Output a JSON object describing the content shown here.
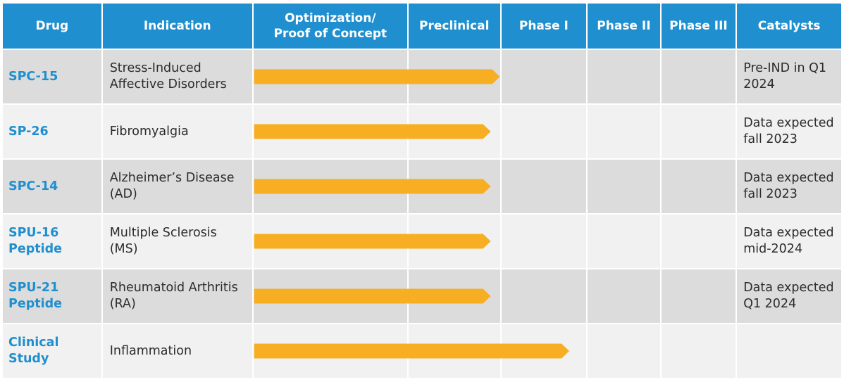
{
  "chart_data": {
    "type": "table",
    "columns": [
      "Drug",
      "Indication",
      "Optimization/\nProof of Concept",
      "Preclinical",
      "Phase I",
      "Phase II",
      "Phase III",
      "Catalysts"
    ],
    "stages": [
      "Optimization/ Proof of Concept",
      "Preclinical",
      "Phase I",
      "Phase II",
      "Phase III"
    ],
    "bar_color": "#f8ae22",
    "header_color": "#1f8fcf",
    "drug_text_color": "#1f8fcf",
    "rows": [
      {
        "drug": "SPC-15",
        "indication": "Stress-Induced Affective Disorders",
        "progress_stages": 2.0,
        "catalyst": "Pre-IND in Q1 2024"
      },
      {
        "drug": "SP-26",
        "indication": "Fibromyalgia",
        "progress_stages": 1.9,
        "catalyst": "Data expected fall 2023"
      },
      {
        "drug": "SPC-14",
        "indication": "Alzheimer’s Disease (AD)",
        "progress_stages": 1.9,
        "catalyst": "Data expected fall 2023"
      },
      {
        "drug": "SPU-16 Peptide",
        "indication": "Multiple Sclerosis (MS)",
        "progress_stages": 1.9,
        "catalyst": "Data expected mid-2024"
      },
      {
        "drug": "SPU-21 Peptide",
        "indication": "Rheumatoid Arthritis (RA)",
        "progress_stages": 1.9,
        "catalyst": "Data expected Q1 2024"
      },
      {
        "drug": "Clinical Study",
        "indication": "Inflammation",
        "progress_stages": 2.8,
        "catalyst": ""
      }
    ]
  }
}
